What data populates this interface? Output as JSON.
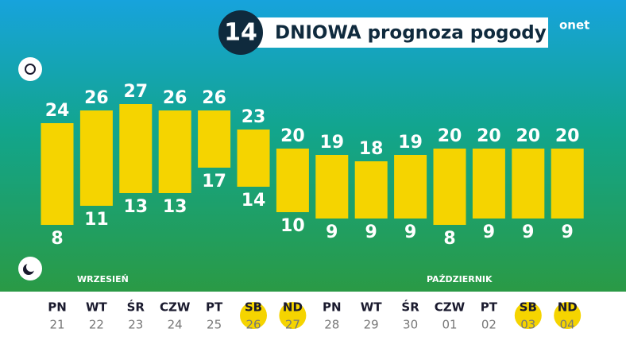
{
  "chart_data": {
    "type": "range-bar",
    "title_number": "14",
    "title": "DNIOWA prognoza pogody",
    "brand": "onet",
    "months": [
      "WRZESIEŃ",
      "PAŹDZIERNIK"
    ],
    "categories": [
      "PN",
      "WT",
      "ŚR",
      "CZW",
      "PT",
      "SB",
      "ND",
      "PN",
      "WT",
      "ŚR",
      "CZW",
      "PT",
      "SB",
      "ND"
    ],
    "dates": [
      "21",
      "22",
      "23",
      "24",
      "25",
      "26",
      "27",
      "28",
      "29",
      "30",
      "01",
      "02",
      "03",
      "04"
    ],
    "weekend": [
      false,
      false,
      false,
      false,
      false,
      true,
      true,
      false,
      false,
      false,
      false,
      false,
      true,
      true
    ],
    "color": "#f5d400",
    "series": [
      {
        "name": "max",
        "values": [
          24,
          26,
          27,
          26,
          26,
          23,
          20,
          19,
          18,
          19,
          20,
          20,
          20,
          20
        ]
      },
      {
        "name": "min",
        "values": [
          8,
          11,
          13,
          13,
          17,
          14,
          10,
          9,
          9,
          9,
          8,
          9,
          9,
          9
        ]
      }
    ]
  }
}
